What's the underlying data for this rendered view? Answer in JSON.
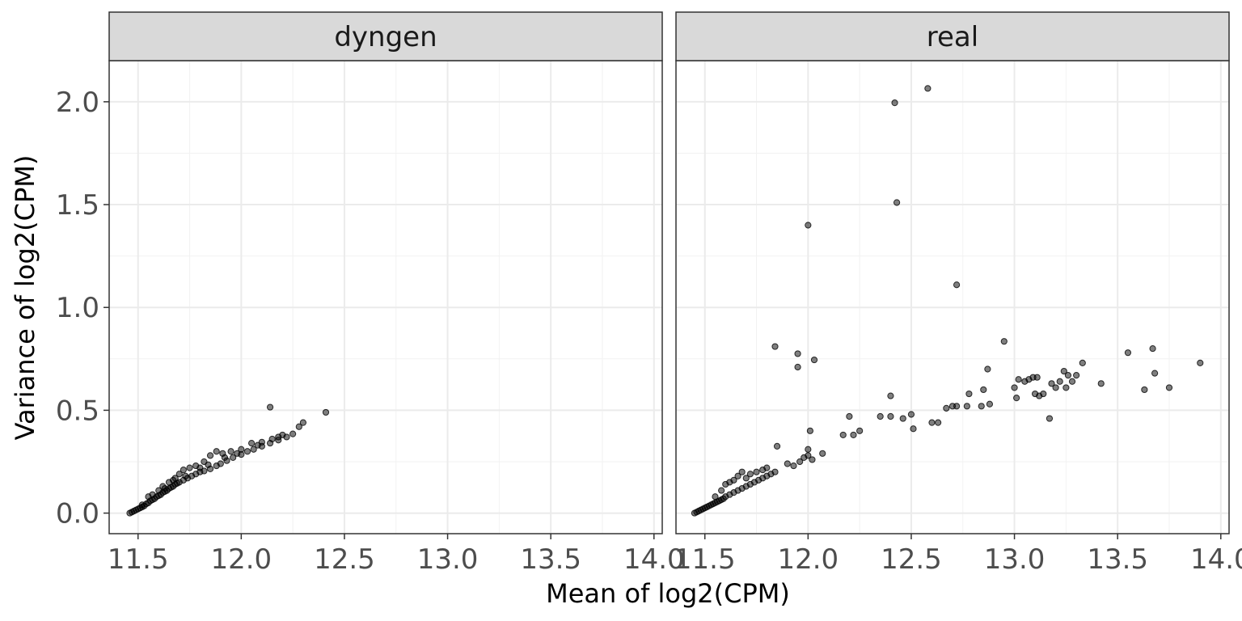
{
  "chart_data": {
    "type": "scatter",
    "xlabel": "Mean of log2(CPM)",
    "ylabel": "Variance of log2(CPM)",
    "xlim": [
      11.36,
      14.04
    ],
    "ylim": [
      -0.1,
      2.2
    ],
    "x_ticks": [
      11.5,
      12.0,
      12.5,
      13.0,
      13.5,
      14.0
    ],
    "x_tick_labels": [
      "11.5",
      "12.0",
      "12.5",
      "13.0",
      "13.5",
      "14.0"
    ],
    "y_ticks": [
      0.0,
      0.5,
      1.0,
      1.5,
      2.0
    ],
    "y_tick_labels": [
      "0.0",
      "0.5",
      "1.0",
      "1.5",
      "2.0"
    ],
    "grid": true,
    "point_color": "#000000",
    "point_opacity": 0.5,
    "facets": [
      {
        "label": "dyngen",
        "points": [
          [
            11.46,
            0.0
          ],
          [
            11.47,
            0.005
          ],
          [
            11.48,
            0.01
          ],
          [
            11.49,
            0.015
          ],
          [
            11.5,
            0.02
          ],
          [
            11.51,
            0.025
          ],
          [
            11.52,
            0.03
          ],
          [
            11.53,
            0.035
          ],
          [
            11.54,
            0.045
          ],
          [
            11.55,
            0.05
          ],
          [
            11.56,
            0.06
          ],
          [
            11.57,
            0.065
          ],
          [
            11.58,
            0.07
          ],
          [
            11.59,
            0.08
          ],
          [
            11.6,
            0.085
          ],
          [
            11.61,
            0.09
          ],
          [
            11.62,
            0.1
          ],
          [
            11.63,
            0.105
          ],
          [
            11.64,
            0.11
          ],
          [
            11.65,
            0.12
          ],
          [
            11.66,
            0.125
          ],
          [
            11.67,
            0.13
          ],
          [
            11.68,
            0.14
          ],
          [
            11.69,
            0.145
          ],
          [
            11.7,
            0.15
          ],
          [
            11.72,
            0.16
          ],
          [
            11.74,
            0.17
          ],
          [
            11.76,
            0.18
          ],
          [
            11.78,
            0.19
          ],
          [
            11.8,
            0.2
          ],
          [
            11.82,
            0.205
          ],
          [
            11.85,
            0.215
          ],
          [
            11.88,
            0.23
          ],
          [
            11.9,
            0.24
          ],
          [
            11.93,
            0.255
          ],
          [
            11.96,
            0.27
          ],
          [
            12.0,
            0.285
          ],
          [
            12.03,
            0.3
          ],
          [
            12.06,
            0.31
          ],
          [
            12.1,
            0.325
          ],
          [
            12.14,
            0.34
          ],
          [
            12.18,
            0.355
          ],
          [
            12.22,
            0.37
          ],
          [
            12.25,
            0.385
          ],
          [
            11.55,
            0.08
          ],
          [
            11.6,
            0.11
          ],
          [
            11.62,
            0.13
          ],
          [
            11.65,
            0.15
          ],
          [
            11.68,
            0.17
          ],
          [
            11.7,
            0.19
          ],
          [
            11.72,
            0.21
          ],
          [
            11.75,
            0.22
          ],
          [
            11.78,
            0.23
          ],
          [
            11.82,
            0.25
          ],
          [
            11.85,
            0.28
          ],
          [
            11.88,
            0.3
          ],
          [
            11.91,
            0.29
          ],
          [
            11.95,
            0.3
          ],
          [
            12.0,
            0.31
          ],
          [
            12.05,
            0.34
          ],
          [
            12.1,
            0.345
          ],
          [
            12.15,
            0.36
          ],
          [
            12.18,
            0.37
          ],
          [
            12.2,
            0.38
          ],
          [
            12.28,
            0.42
          ],
          [
            12.3,
            0.44
          ],
          [
            12.14,
            0.515
          ],
          [
            12.41,
            0.49
          ],
          [
            11.52,
            0.04
          ],
          [
            11.57,
            0.09
          ],
          [
            11.63,
            0.12
          ],
          [
            11.67,
            0.16
          ],
          [
            11.73,
            0.18
          ],
          [
            11.8,
            0.22
          ],
          [
            11.84,
            0.235
          ],
          [
            11.92,
            0.27
          ],
          [
            11.98,
            0.29
          ],
          [
            12.08,
            0.33
          ]
        ]
      },
      {
        "label": "real",
        "points": [
          [
            11.45,
            0.0
          ],
          [
            11.46,
            0.005
          ],
          [
            11.47,
            0.01
          ],
          [
            11.48,
            0.015
          ],
          [
            11.49,
            0.02
          ],
          [
            11.5,
            0.025
          ],
          [
            11.51,
            0.03
          ],
          [
            11.52,
            0.035
          ],
          [
            11.53,
            0.04
          ],
          [
            11.54,
            0.045
          ],
          [
            11.55,
            0.05
          ],
          [
            11.56,
            0.055
          ],
          [
            11.57,
            0.06
          ],
          [
            11.58,
            0.065
          ],
          [
            11.59,
            0.07
          ],
          [
            11.6,
            0.08
          ],
          [
            11.62,
            0.09
          ],
          [
            11.64,
            0.1
          ],
          [
            11.66,
            0.11
          ],
          [
            11.68,
            0.12
          ],
          [
            11.7,
            0.13
          ],
          [
            11.72,
            0.14
          ],
          [
            11.74,
            0.15
          ],
          [
            11.76,
            0.16
          ],
          [
            11.78,
            0.17
          ],
          [
            11.8,
            0.18
          ],
          [
            11.82,
            0.19
          ],
          [
            11.84,
            0.2
          ],
          [
            11.55,
            0.08
          ],
          [
            11.58,
            0.11
          ],
          [
            11.6,
            0.14
          ],
          [
            11.62,
            0.15
          ],
          [
            11.64,
            0.16
          ],
          [
            11.66,
            0.18
          ],
          [
            11.68,
            0.2
          ],
          [
            11.7,
            0.17
          ],
          [
            11.72,
            0.19
          ],
          [
            11.75,
            0.2
          ],
          [
            11.78,
            0.21
          ],
          [
            11.8,
            0.22
          ],
          [
            11.85,
            0.325
          ],
          [
            11.9,
            0.24
          ],
          [
            11.93,
            0.23
          ],
          [
            11.96,
            0.25
          ],
          [
            11.98,
            0.27
          ],
          [
            12.0,
            0.28
          ],
          [
            12.02,
            0.26
          ],
          [
            12.0,
            0.31
          ],
          [
            12.01,
            0.4
          ],
          [
            11.84,
            0.81
          ],
          [
            11.95,
            0.775
          ],
          [
            11.95,
            0.71
          ],
          [
            12.03,
            0.745
          ],
          [
            12.0,
            1.4
          ],
          [
            12.07,
            0.29
          ],
          [
            12.17,
            0.38
          ],
          [
            12.2,
            0.47
          ],
          [
            12.22,
            0.38
          ],
          [
            12.25,
            0.4
          ],
          [
            12.35,
            0.47
          ],
          [
            12.4,
            0.57
          ],
          [
            12.4,
            0.47
          ],
          [
            12.46,
            0.46
          ],
          [
            12.5,
            0.48
          ],
          [
            12.51,
            0.41
          ],
          [
            12.42,
            1.995
          ],
          [
            12.43,
            1.51
          ],
          [
            12.58,
            2.065
          ],
          [
            12.72,
            1.11
          ],
          [
            12.6,
            0.44
          ],
          [
            12.63,
            0.44
          ],
          [
            12.67,
            0.51
          ],
          [
            12.7,
            0.52
          ],
          [
            12.72,
            0.52
          ],
          [
            12.77,
            0.52
          ],
          [
            12.78,
            0.58
          ],
          [
            12.84,
            0.52
          ],
          [
            12.85,
            0.6
          ],
          [
            12.87,
            0.7
          ],
          [
            12.88,
            0.53
          ],
          [
            12.95,
            0.835
          ],
          [
            13.0,
            0.61
          ],
          [
            13.02,
            0.65
          ],
          [
            13.05,
            0.64
          ],
          [
            13.07,
            0.65
          ],
          [
            13.09,
            0.66
          ],
          [
            13.1,
            0.58
          ],
          [
            13.12,
            0.57
          ],
          [
            13.14,
            0.58
          ],
          [
            13.17,
            0.46
          ],
          [
            13.18,
            0.63
          ],
          [
            13.2,
            0.61
          ],
          [
            13.22,
            0.64
          ],
          [
            13.24,
            0.69
          ],
          [
            13.26,
            0.67
          ],
          [
            13.28,
            0.64
          ],
          [
            13.3,
            0.67
          ],
          [
            13.33,
            0.73
          ],
          [
            13.42,
            0.63
          ],
          [
            13.55,
            0.78
          ],
          [
            13.63,
            0.6
          ],
          [
            13.67,
            0.8
          ],
          [
            13.68,
            0.68
          ],
          [
            13.75,
            0.61
          ],
          [
            13.9,
            0.73
          ],
          [
            13.11,
            0.66
          ],
          [
            13.01,
            0.56
          ],
          [
            13.25,
            0.61
          ]
        ]
      }
    ]
  }
}
